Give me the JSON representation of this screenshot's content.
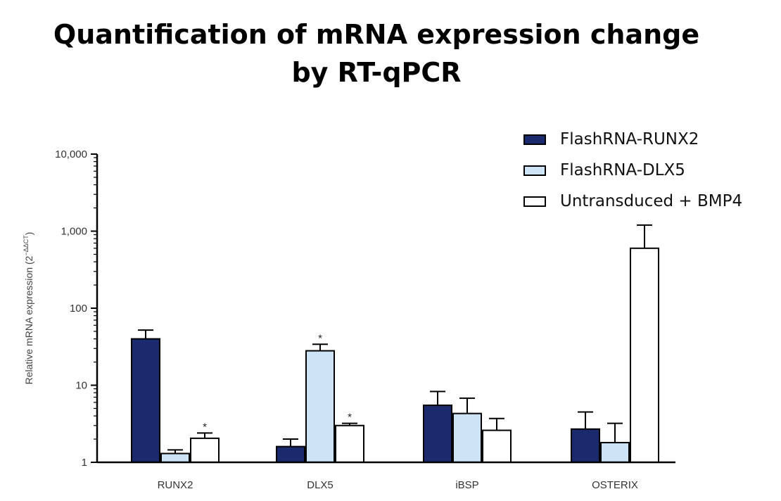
{
  "title_line1": "Quantification of mRNA expression change",
  "title_line2": "by RT-qPCR",
  "legend": [
    {
      "label": "FlashRNA-RUNX2",
      "color": "#1a2a6c"
    },
    {
      "label": "FlashRNA-DLX5",
      "color": "#cce4f5"
    },
    {
      "label": "Untransduced + BMP4",
      "color": "#ffffff"
    }
  ],
  "chart_data": {
    "type": "bar",
    "title": "Quantification of mRNA expression change by RT-qPCR",
    "ylabel": "Relative mRNA expression (2",
    "ylabel_superscript": "−ΔΔCT",
    "ylabel_close": ")",
    "yscale": "log",
    "ylim": [
      1,
      10000
    ],
    "yticks": [
      "1",
      "10",
      "100",
      "1,000",
      "10,000"
    ],
    "ytick_values": [
      1,
      10,
      100,
      1000,
      10000
    ],
    "categories": [
      "RUNX2",
      "DLX5",
      "iBSP",
      "OSTERIX"
    ],
    "series": [
      {
        "name": "FlashRNA-RUNX2",
        "color": "#1a2a6c",
        "values": [
          40,
          1.6,
          5.5,
          2.7
        ],
        "error_upper": [
          52,
          2.0,
          8.3,
          4.5
        ],
        "significant": [
          false,
          false,
          false,
          false
        ]
      },
      {
        "name": "FlashRNA-DLX5",
        "color": "#cce4f5",
        "values": [
          1.3,
          28,
          4.3,
          1.8
        ],
        "error_upper": [
          1.45,
          34,
          6.8,
          3.2
        ],
        "significant": [
          false,
          true,
          false,
          false
        ]
      },
      {
        "name": "Untransduced + BMP4",
        "color": "#ffffff",
        "values": [
          2.05,
          3.0,
          2.6,
          600
        ],
        "error_upper": [
          2.4,
          3.2,
          3.7,
          1200
        ],
        "significant": [
          true,
          true,
          false,
          false
        ]
      }
    ],
    "significance_marker": "*",
    "legend_position": "top-right",
    "grid": false
  }
}
